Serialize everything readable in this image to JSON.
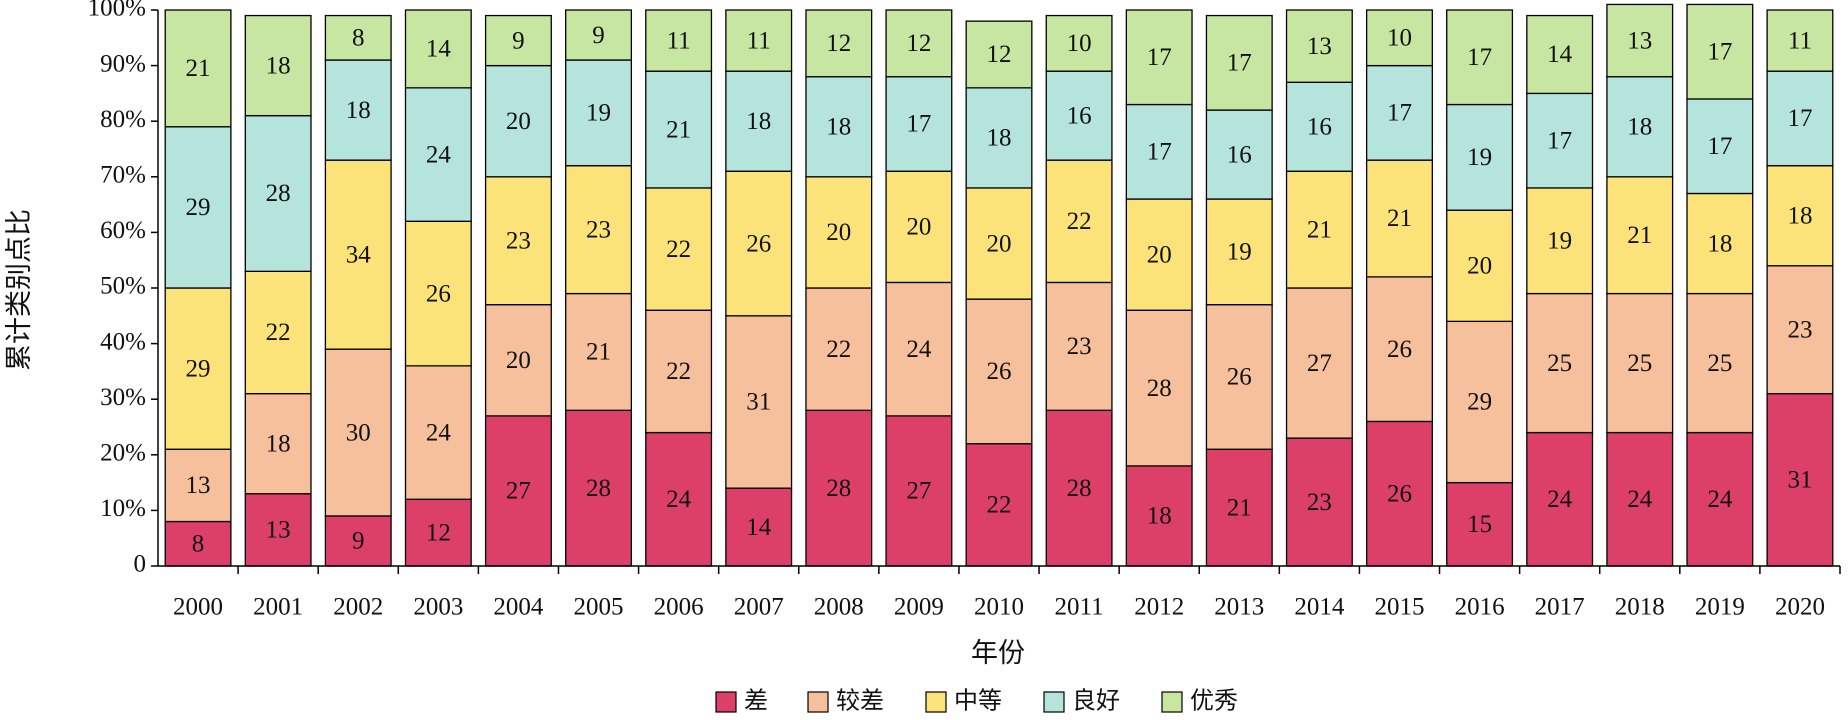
{
  "chart_data": {
    "type": "stacked_bar",
    "x_label": "年份",
    "y_label": "累计类别点比",
    "categories": [
      "2000",
      "2001",
      "2002",
      "2003",
      "2004",
      "2005",
      "2006",
      "2007",
      "2008",
      "2009",
      "2010",
      "2011",
      "2012",
      "2013",
      "2014",
      "2015",
      "2016",
      "2017",
      "2018",
      "2019",
      "2020"
    ],
    "series": [
      {
        "name": "差",
        "color": "#dc4069",
        "values": [
          8,
          13,
          9,
          12,
          27,
          28,
          24,
          14,
          28,
          27,
          22,
          28,
          18,
          21,
          23,
          26,
          15,
          24,
          24,
          24,
          31
        ]
      },
      {
        "name": "较差",
        "color": "#f7c09c",
        "values": [
          13,
          18,
          30,
          24,
          20,
          21,
          22,
          31,
          22,
          24,
          26,
          23,
          28,
          26,
          27,
          26,
          29,
          25,
          25,
          25,
          23
        ]
      },
      {
        "name": "中等",
        "color": "#fbe37a",
        "values": [
          29,
          22,
          34,
          26,
          23,
          23,
          22,
          26,
          20,
          20,
          20,
          22,
          20,
          19,
          21,
          21,
          20,
          19,
          21,
          18,
          18
        ]
      },
      {
        "name": "良好",
        "color": "#b5e4dd",
        "values": [
          29,
          28,
          18,
          24,
          20,
          19,
          21,
          18,
          18,
          17,
          18,
          16,
          17,
          16,
          16,
          17,
          19,
          17,
          18,
          17,
          17
        ]
      },
      {
        "name": "优秀",
        "color": "#c7e6a1",
        "values": [
          21,
          18,
          8,
          14,
          9,
          9,
          11,
          11,
          12,
          12,
          12,
          10,
          17,
          17,
          13,
          10,
          17,
          14,
          13,
          17,
          11
        ]
      }
    ],
    "ylim": [
      0,
      100
    ],
    "yticks": [
      0,
      {
        "value": 10,
        "label": "10%"
      },
      {
        "value": 20,
        "label": "20%"
      },
      {
        "value": 30,
        "label": "30%"
      },
      {
        "value": 40,
        "label": "40%"
      },
      {
        "value": 50,
        "label": "50%"
      },
      {
        "value": 60,
        "label": "60%"
      },
      {
        "value": 70,
        "label": "70%"
      },
      {
        "value": 80,
        "label": "80%"
      },
      {
        "value": 90,
        "label": "90%"
      },
      {
        "value": 100,
        "label": "100%"
      }
    ]
  }
}
